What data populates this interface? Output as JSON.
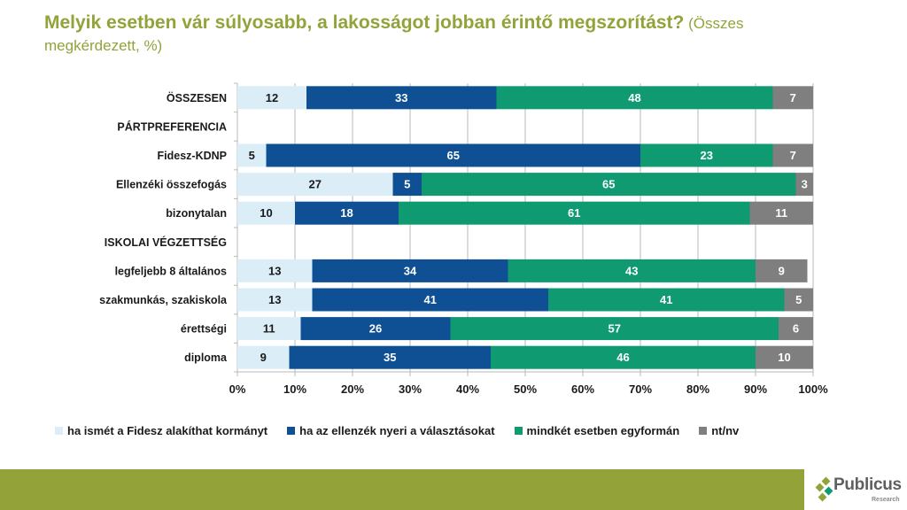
{
  "title": {
    "main": "Melyik esetben vár súlyosabb, a lakosságot jobban érintő megszorítást?",
    "sub": " (Összes megkérdezett, %)"
  },
  "chart_data": {
    "type": "bar",
    "orientation": "horizontal",
    "stacked": true,
    "title": "Melyik esetben vár súlyosabb, a lakosságot jobban érintő megszorítást? (Összes megkérdezett, %)",
    "xlabel": "",
    "ylabel": "",
    "xlim": [
      0,
      100
    ],
    "x_ticks": [
      "0%",
      "10%",
      "20%",
      "30%",
      "40%",
      "50%",
      "60%",
      "70%",
      "80%",
      "90%",
      "100%"
    ],
    "grid": true,
    "legend_position": "bottom",
    "categories": [
      "ÖSSZESEN",
      "PÁRTPREFERENCIA",
      "Fidesz-KDNP",
      "Ellenzéki összefogás",
      "bizonytalan",
      "ISKOLAI VÉGZETTSÉG",
      "legfeljebb 8 általános",
      "szakmunkás, szakiskola",
      "érettségi",
      "diploma"
    ],
    "series": [
      {
        "name": "ha ismét a Fidesz alakíthat kormányt",
        "color": "#dbeef8",
        "label_color": "#1a1a1a",
        "values": [
          12,
          null,
          5,
          27,
          10,
          null,
          13,
          13,
          11,
          9
        ]
      },
      {
        "name": "ha az ellenzék nyeri a választásokat",
        "color": "#0e5093",
        "label_color": "#ffffff",
        "values": [
          33,
          null,
          65,
          5,
          18,
          null,
          34,
          41,
          26,
          35
        ]
      },
      {
        "name": "mindkét esetben egyformán",
        "color": "#109a72",
        "label_color": "#ffffff",
        "values": [
          48,
          null,
          23,
          65,
          61,
          null,
          43,
          41,
          57,
          46
        ]
      },
      {
        "name": "nt/nv",
        "color": "#7f7f7f",
        "label_color": "#ffffff",
        "values": [
          7,
          null,
          7,
          3,
          11,
          null,
          9,
          5,
          6,
          10
        ]
      }
    ]
  },
  "footer": {
    "brand": "Publicus",
    "brand_sub": "Research",
    "accent_color": "#93a33a"
  }
}
